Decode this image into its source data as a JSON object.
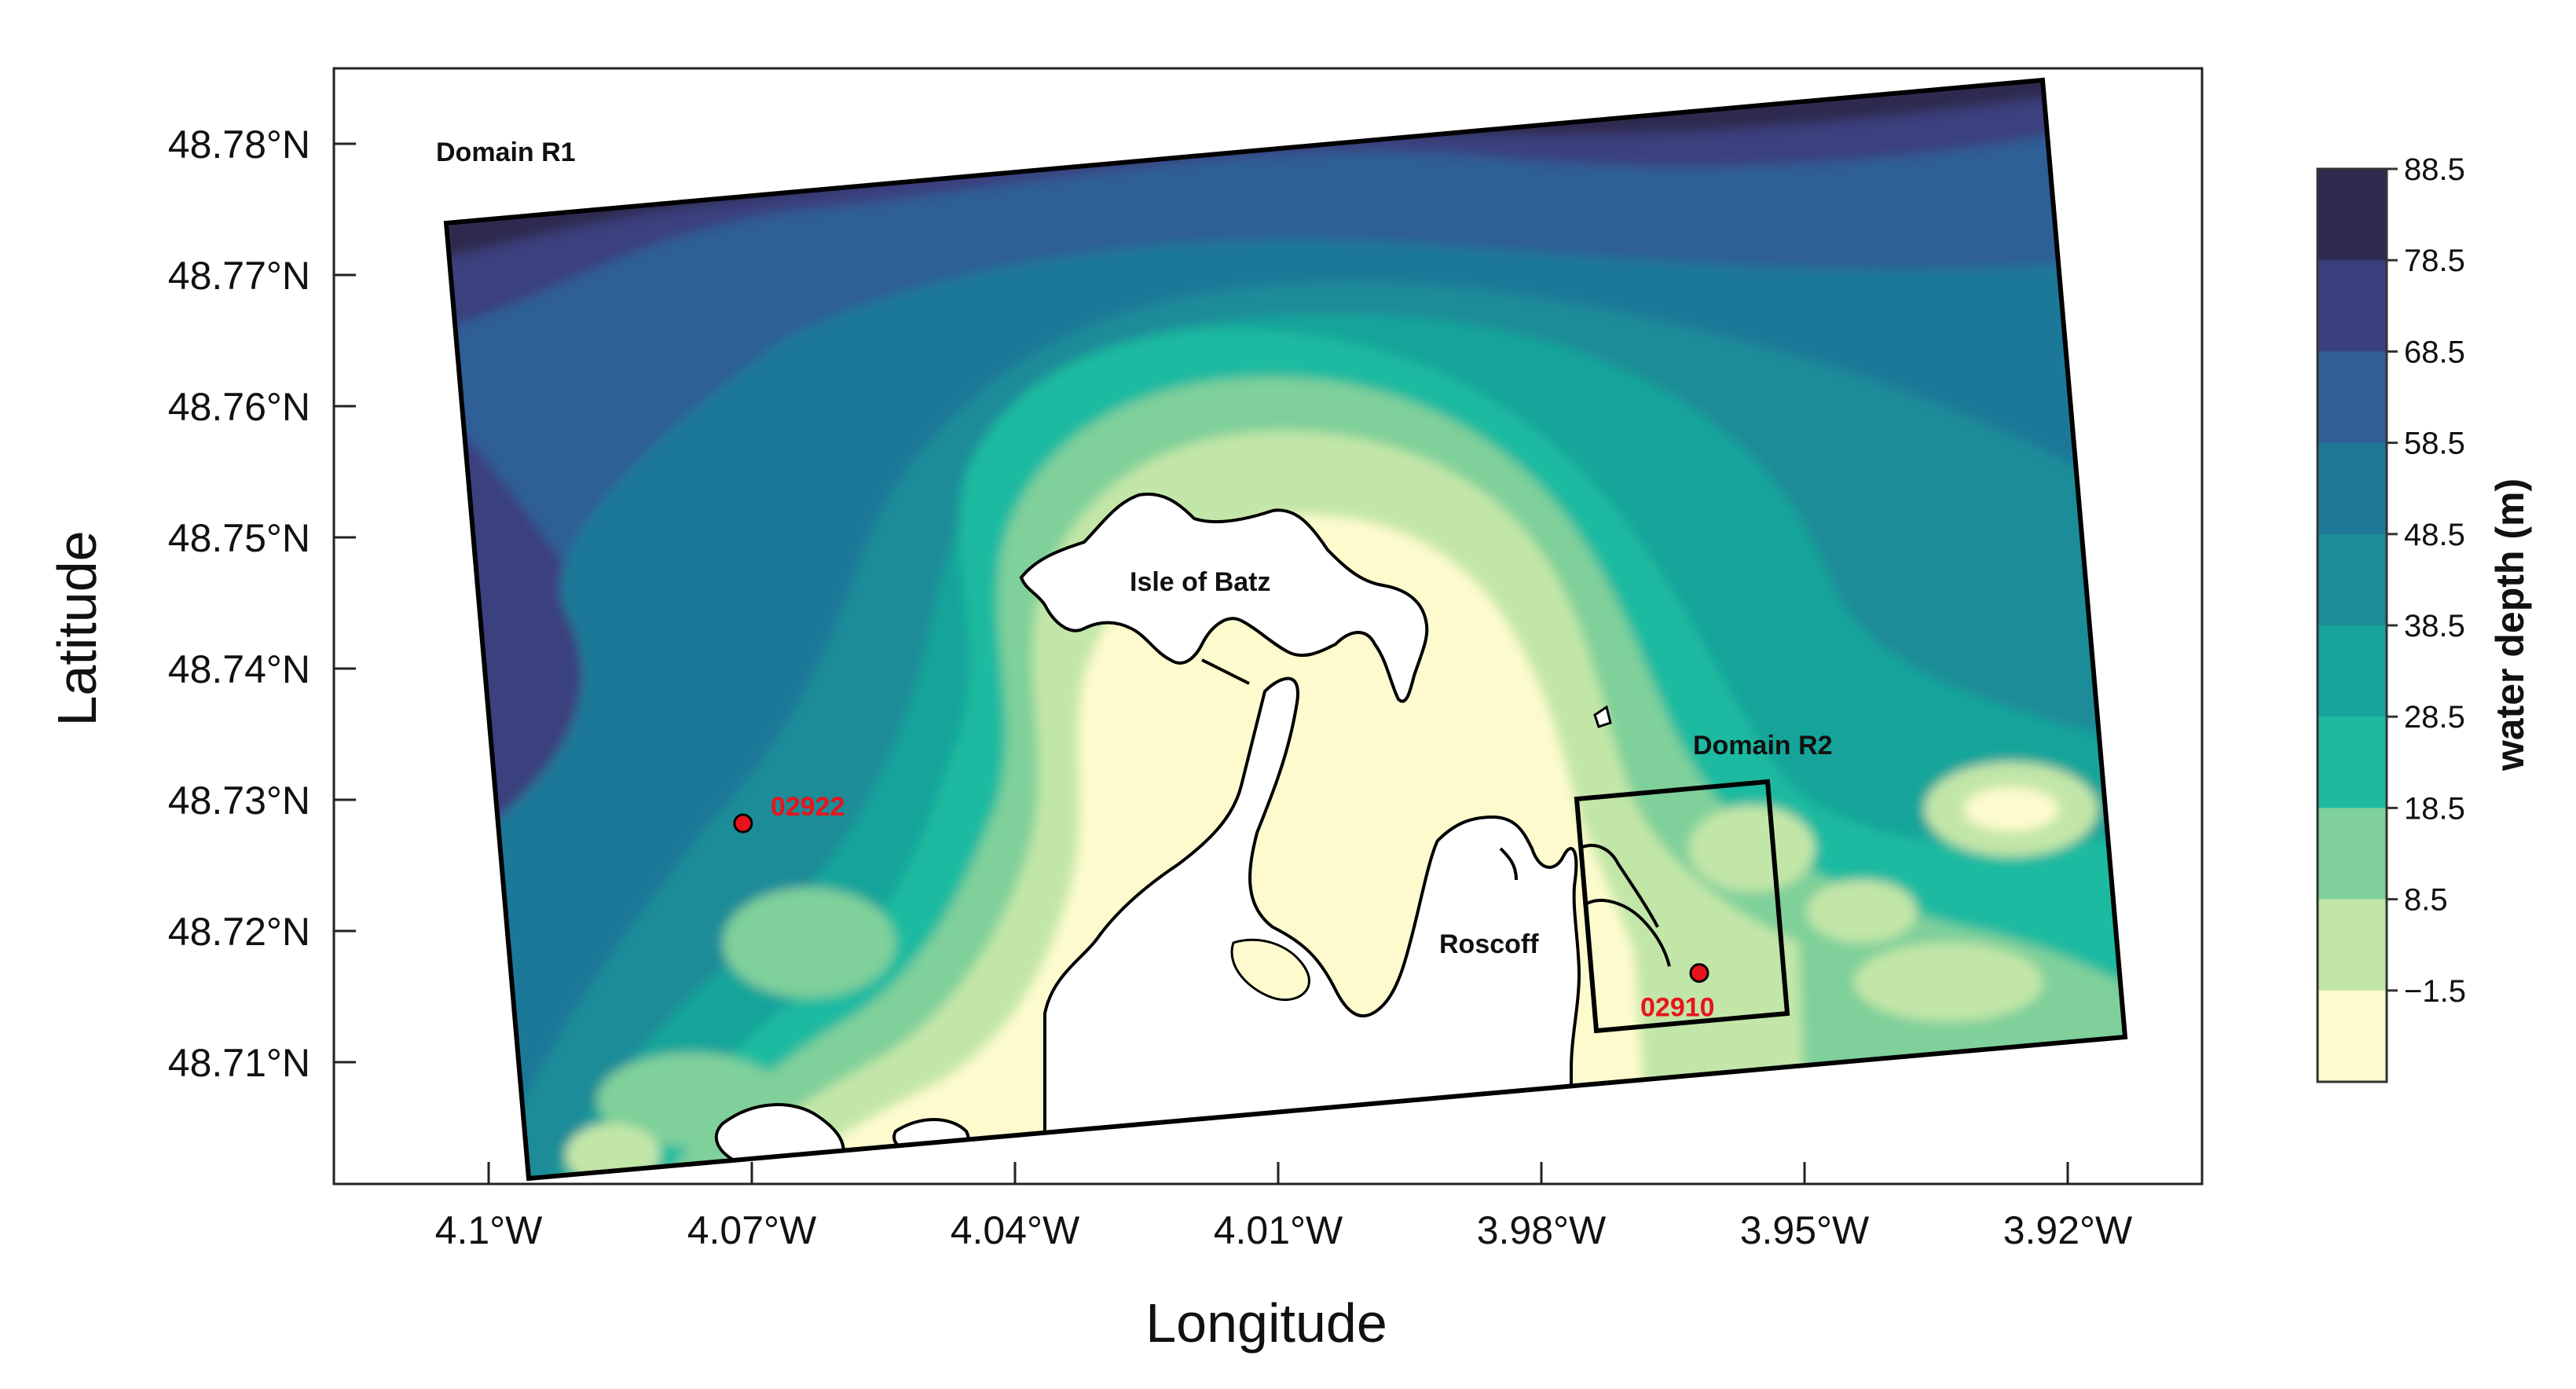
{
  "map": {
    "axes": {
      "xlabel": "Longitude",
      "ylabel": "Latitude",
      "x_ticks": [
        {
          "value": -4.1,
          "label": "4.1°W"
        },
        {
          "value": -4.07,
          "label": "4.07°W"
        },
        {
          "value": -4.04,
          "label": "4.04°W"
        },
        {
          "value": -4.01,
          "label": "4.01°W"
        },
        {
          "value": -3.98,
          "label": "3.98°W"
        },
        {
          "value": -3.95,
          "label": "3.95°W"
        },
        {
          "value": -3.92,
          "label": "3.92°W"
        }
      ],
      "y_ticks": [
        {
          "value": 48.78,
          "label": "48.78°N"
        },
        {
          "value": 48.77,
          "label": "48.77°N"
        },
        {
          "value": 48.76,
          "label": "48.76°N"
        },
        {
          "value": 48.75,
          "label": "48.75°N"
        },
        {
          "value": 48.74,
          "label": "48.74°N"
        },
        {
          "value": 48.73,
          "label": "48.73°N"
        },
        {
          "value": 48.72,
          "label": "48.72°N"
        },
        {
          "value": 48.71,
          "label": "48.71°N"
        }
      ]
    },
    "labels": {
      "domain_r1": "Domain R1",
      "domain_r2": "Domain R2",
      "isle_of_batz": "Isle of Batz",
      "roscoff": "Roscoff"
    },
    "stations": [
      {
        "id": "02922",
        "lon": -4.071,
        "lat": 48.7282,
        "color": "#e8141b"
      },
      {
        "id": "02910",
        "lon": -3.962,
        "lat": 48.7168,
        "color": "#e8141b"
      }
    ],
    "colorbar": {
      "title": "water depth (m)",
      "ticks": [
        "88.5",
        "78.5",
        "68.5",
        "58.5",
        "48.5",
        "38.5",
        "28.5",
        "18.5",
        "8.5",
        "−1.5"
      ],
      "colors": [
        "#2f2a4f",
        "#3a3f7e",
        "#2f5f96",
        "#1e7898",
        "#1b8c98",
        "#17a49a",
        "#1ebaa0",
        "#7fd09a",
        "#c2e6a8",
        "#fdfbcd"
      ]
    }
  }
}
